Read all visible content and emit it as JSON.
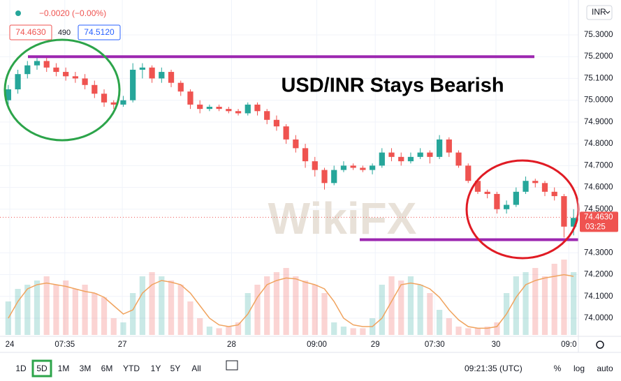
{
  "chart_data": {
    "type": "candlestick",
    "title": "USD/INR Stays Bearish",
    "xlim": [
      0,
      60
    ],
    "xticks": [
      {
        "value": 0.66,
        "label": "24"
      },
      {
        "value": 6.4,
        "label": "07:35"
      },
      {
        "value": 12.4,
        "label": "27"
      },
      {
        "value": 23.8,
        "label": "28"
      },
      {
        "value": 32.7,
        "label": "09:00"
      },
      {
        "value": 38.8,
        "label": "29"
      },
      {
        "value": 45,
        "label": "07:30"
      },
      {
        "value": 51.4,
        "label": "30"
      },
      {
        "value": 59,
        "label": "09:0"
      }
    ],
    "ylim": [
      73.923,
      75.46
    ],
    "yticks": [
      {
        "value": 74,
        "label": "74.0000"
      },
      {
        "value": 74.1,
        "label": "74.1000"
      },
      {
        "value": 74.2,
        "label": "74.2000"
      },
      {
        "value": 74.3,
        "label": "74.3000"
      },
      {
        "value": 74.5,
        "label": "74.5000"
      },
      {
        "value": 74.6,
        "label": "74.6000"
      },
      {
        "value": 74.7,
        "label": "74.7000"
      },
      {
        "value": 74.8,
        "label": "74.8000"
      },
      {
        "value": 74.9,
        "label": "74.9000"
      },
      {
        "value": 75,
        "label": "75.0000"
      },
      {
        "value": 75.1,
        "label": "75.1000"
      },
      {
        "value": 75.2,
        "label": "75.2000"
      },
      {
        "value": 75.3,
        "label": "75.3000"
      }
    ],
    "grid": true,
    "up_color": "#26a69a",
    "down_color": "#ef5350",
    "open": [
      75.0,
      75.05,
      75.12,
      75.16,
      75.18,
      75.15,
      75.13,
      75.11,
      75.1,
      75.07,
      75.03,
      74.99,
      74.98,
      75.0,
      75.14,
      75.15,
      75.1,
      75.13,
      75.08,
      75.04,
      74.98,
      74.96,
      74.97,
      74.96,
      74.95,
      74.94,
      74.98,
      74.95,
      74.91,
      74.88,
      74.82,
      74.78,
      74.72,
      74.68,
      74.62,
      74.68,
      74.7,
      74.69,
      74.68,
      74.7,
      74.76,
      74.74,
      74.72,
      74.74,
      74.76,
      74.74,
      74.82,
      74.76,
      74.7,
      74.63,
      74.58,
      74.57,
      74.5,
      74.52,
      74.58,
      74.63,
      74.62,
      74.58,
      74.56,
      74.42
    ],
    "high": [
      75.07,
      75.14,
      75.18,
      75.2,
      75.2,
      75.17,
      75.15,
      75.13,
      75.12,
      75.09,
      75.05,
      75.0,
      75.02,
      75.17,
      75.17,
      75.16,
      75.15,
      75.14,
      75.09,
      75.05,
      75.0,
      74.98,
      74.98,
      74.97,
      74.96,
      74.99,
      74.99,
      74.96,
      74.93,
      74.89,
      74.84,
      74.8,
      74.74,
      74.69,
      74.7,
      74.72,
      74.71,
      74.7,
      74.71,
      74.78,
      74.78,
      74.76,
      74.76,
      74.78,
      74.77,
      74.84,
      74.83,
      74.77,
      74.71,
      74.64,
      74.59,
      74.58,
      74.54,
      74.6,
      74.65,
      74.64,
      74.63,
      74.6,
      74.57,
      74.5
    ],
    "low": [
      74.98,
      75.03,
      75.1,
      75.14,
      75.13,
      75.11,
      75.09,
      75.08,
      75.05,
      75.01,
      74.97,
      74.96,
      74.97,
      74.99,
      75.1,
      75.08,
      75.08,
      75.06,
      75.02,
      74.96,
      74.94,
      74.95,
      74.95,
      74.94,
      74.93,
      74.93,
      74.93,
      74.89,
      74.86,
      74.8,
      74.76,
      74.69,
      74.65,
      74.59,
      74.61,
      74.67,
      74.68,
      74.67,
      74.66,
      74.69,
      74.72,
      74.7,
      74.71,
      74.73,
      74.71,
      74.73,
      74.74,
      74.69,
      74.62,
      74.57,
      74.55,
      74.48,
      74.48,
      74.51,
      74.57,
      74.6,
      74.56,
      74.54,
      74.37,
      74.38
    ],
    "close": [
      75.05,
      75.12,
      75.16,
      75.18,
      75.15,
      75.13,
      75.11,
      75.1,
      75.07,
      75.03,
      74.99,
      74.98,
      75.0,
      75.14,
      75.15,
      75.1,
      75.13,
      75.08,
      75.04,
      74.98,
      74.96,
      74.97,
      74.96,
      74.95,
      74.94,
      74.98,
      74.95,
      74.91,
      74.88,
      74.82,
      74.78,
      74.72,
      74.68,
      74.62,
      74.68,
      74.7,
      74.69,
      74.68,
      74.7,
      74.76,
      74.74,
      74.72,
      74.74,
      74.76,
      74.74,
      74.82,
      74.76,
      74.7,
      74.63,
      74.58,
      74.57,
      74.5,
      74.52,
      74.58,
      74.63,
      74.62,
      74.58,
      74.56,
      74.42,
      74.46
    ],
    "vlim": [
      0,
      100
    ],
    "volume": [
      40,
      55,
      60,
      65,
      70,
      60,
      65,
      55,
      60,
      50,
      45,
      20,
      15,
      50,
      70,
      75,
      70,
      65,
      60,
      40,
      20,
      10,
      8,
      10,
      15,
      50,
      60,
      70,
      75,
      80,
      70,
      65,
      60,
      50,
      15,
      10,
      8,
      8,
      20,
      60,
      70,
      65,
      70,
      60,
      50,
      30,
      20,
      10,
      8,
      8,
      10,
      15,
      50,
      70,
      75,
      80,
      70,
      85,
      90,
      75
    ],
    "volume_ma": [
      20,
      40,
      55,
      60,
      62,
      60,
      58,
      55,
      52,
      50,
      45,
      35,
      25,
      30,
      50,
      60,
      65,
      63,
      60,
      50,
      35,
      20,
      12,
      10,
      12,
      25,
      45,
      60,
      65,
      68,
      67,
      63,
      60,
      55,
      40,
      20,
      12,
      10,
      10,
      20,
      40,
      60,
      62,
      60,
      55,
      45,
      30,
      18,
      10,
      8,
      8,
      10,
      25,
      45,
      60,
      65,
      68,
      70,
      72,
      70
    ],
    "ma_color": "#f0a35e",
    "level_color": "#9c27b0",
    "levels": [
      75.2,
      74.36
    ],
    "last_price": {
      "value": 74.463,
      "label": "74.4630"
    }
  },
  "ui": {
    "change": "−0.0020 (−0.00%)",
    "bid": "74.4630",
    "spread": "490",
    "ask": "74.5120",
    "symbol": "INR",
    "countdown": "03:25",
    "watermark": "WikiFX",
    "ranges": [
      "1D",
      "5D",
      "1M",
      "3M",
      "6M",
      "YTD",
      "1Y",
      "5Y",
      "All"
    ],
    "time": "09:21:35 (UTC)",
    "options": [
      "%",
      "log",
      "auto"
    ]
  }
}
